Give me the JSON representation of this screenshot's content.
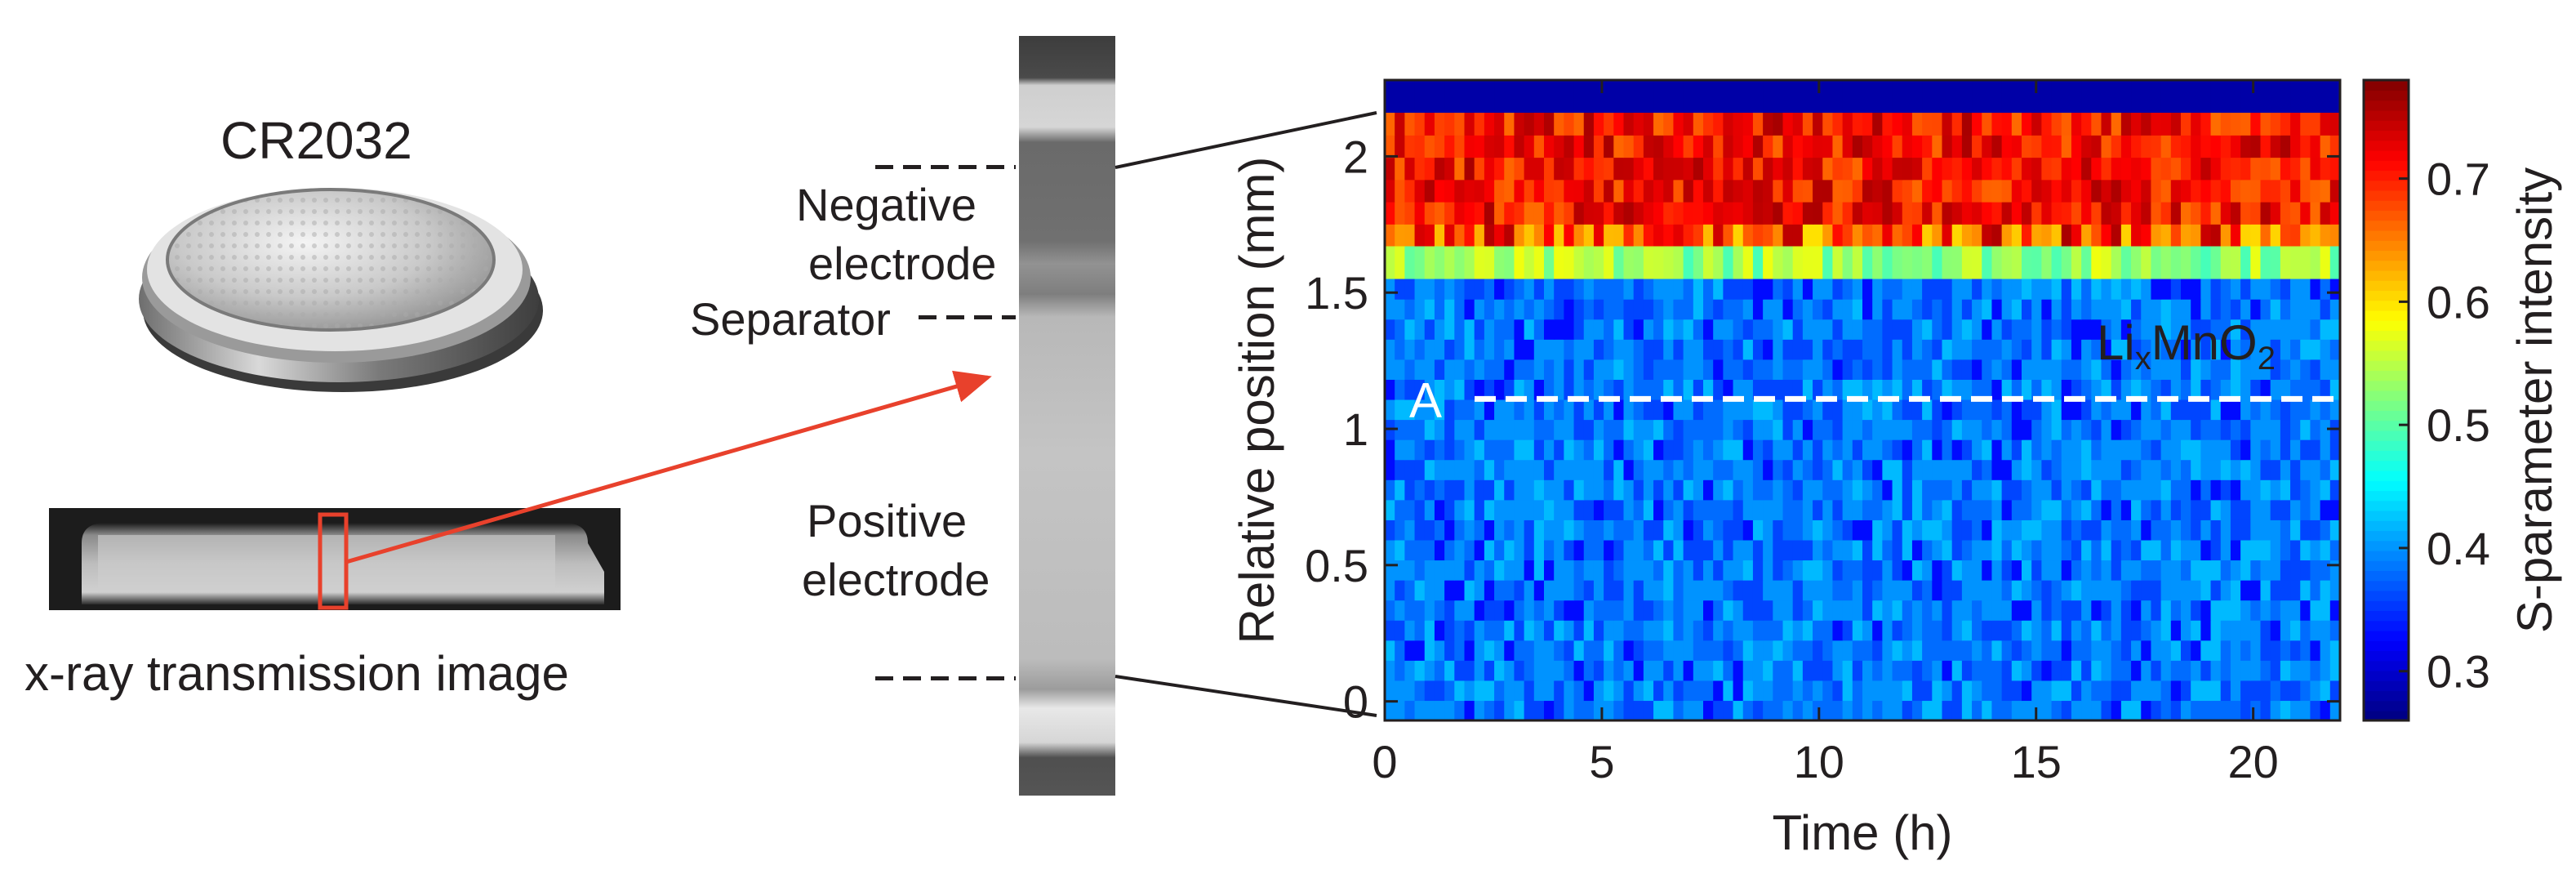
{
  "left_panel": {
    "battery_label": "CR2032",
    "xray_caption": "x-ray transmission image"
  },
  "strip_labels": {
    "negative_line1": "Negative",
    "negative_line2": "electrode",
    "separator": "Separator",
    "positive_line1": "Positive",
    "positive_line2": "electrode"
  },
  "chart_data": {
    "type": "heatmap",
    "title": "",
    "xlabel": "Time (h)",
    "ylabel": "Relative position (mm)",
    "xlim": [
      0,
      22
    ],
    "ylim": [
      -0.07,
      2.28
    ],
    "x_ticks": [
      0,
      5,
      10,
      15,
      20
    ],
    "x_tick_labels": [
      "0",
      "5",
      "10",
      "15",
      "20"
    ],
    "y_ticks": [
      0,
      0.5,
      1,
      1.5,
      2
    ],
    "y_tick_labels": [
      "0",
      "0.5",
      "1",
      "1.5",
      "2"
    ],
    "colorbar": {
      "label": "S-parameter intensity",
      "range": [
        0.26,
        0.78
      ],
      "ticks": [
        0.3,
        0.4,
        0.5,
        0.6,
        0.7
      ],
      "tick_labels": [
        "0.3",
        "0.4",
        "0.5",
        "0.6",
        "0.7"
      ],
      "colormap": "jet"
    },
    "regions": [
      {
        "name": "top-boundary",
        "y_range": [
          2.16,
          2.28
        ],
        "value": 0.28
      },
      {
        "name": "negative-electrode",
        "y_range": [
          1.67,
          2.16
        ],
        "value": 0.71
      },
      {
        "name": "separator",
        "y_range": [
          1.55,
          1.67
        ],
        "value": 0.55
      },
      {
        "name": "positive-electrode",
        "y_range": [
          -0.07,
          1.55
        ],
        "value": 0.4
      }
    ],
    "line_A": {
      "label": "A",
      "y": 1.11
    },
    "annotation": {
      "base": "Li",
      "sub_x": "x",
      "mid": "MnO",
      "sub_2": "2"
    },
    "accent_colors": {
      "arrow": "#e8412c",
      "frame": "#231f20"
    }
  }
}
